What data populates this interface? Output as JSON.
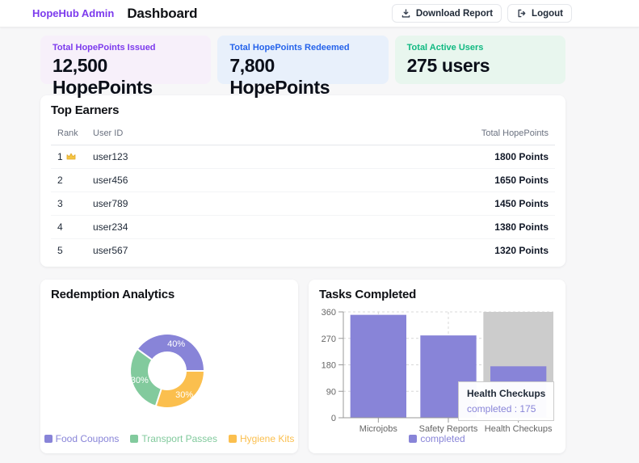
{
  "header": {
    "brand": "HopeHub Admin",
    "title": "Dashboard",
    "download_label": "Download Report",
    "logout_label": "Logout"
  },
  "stats": [
    {
      "label": "Total HopePoints Issued",
      "value": "12,500 HopePoints",
      "accent": "#7c3aed",
      "bg": "#f7f0fa"
    },
    {
      "label": "Total HopePoints Redeemed",
      "value": "7,800 HopePoints",
      "accent": "#2563eb",
      "bg": "#e8f0fb"
    },
    {
      "label": "Total Active Users",
      "value": "275 users",
      "accent": "#10b981",
      "bg": "#e8f6ee"
    }
  ],
  "top_earners": {
    "title": "Top Earners",
    "columns": [
      "Rank",
      "User ID",
      "Total HopePoints"
    ],
    "rows": [
      {
        "rank": "1",
        "crown": true,
        "user_id": "user123",
        "points": "1800 Points"
      },
      {
        "rank": "2",
        "crown": false,
        "user_id": "user456",
        "points": "1650 Points"
      },
      {
        "rank": "3",
        "crown": false,
        "user_id": "user789",
        "points": "1450 Points"
      },
      {
        "rank": "4",
        "crown": false,
        "user_id": "user234",
        "points": "1380 Points"
      },
      {
        "rank": "5",
        "crown": false,
        "user_id": "user567",
        "points": "1320 Points"
      }
    ]
  },
  "chart_data": [
    {
      "type": "pie",
      "title": "Redemption Analytics",
      "labels": [
        "Food Coupons",
        "Transport Passes",
        "Hygiene Kits"
      ],
      "values": [
        40,
        30,
        30
      ],
      "value_labels": [
        "40%",
        "30%",
        "30%"
      ],
      "colors": [
        "#8884d8",
        "#82ca9d",
        "#fbbf4e"
      ],
      "donut": true,
      "start_angle": 0,
      "direction": "counterclockwise",
      "legend_position": "bottom"
    },
    {
      "type": "bar",
      "title": "Tasks Completed",
      "categories": [
        "Microjobs",
        "Safety Reports",
        "Health Checkups"
      ],
      "series": [
        {
          "name": "completed",
          "values": [
            350,
            280,
            175
          ],
          "color": "#8884d8"
        }
      ],
      "ylim": [
        0,
        360
      ],
      "yticks": [
        0,
        90,
        180,
        270,
        360
      ],
      "grid": "dashed",
      "legend_position": "bottom",
      "hover": {
        "category": "Health Checkups",
        "cursor_fill": "#cccccc"
      },
      "tooltip": {
        "title": "Health Checkups",
        "line": "completed : 175"
      }
    }
  ]
}
